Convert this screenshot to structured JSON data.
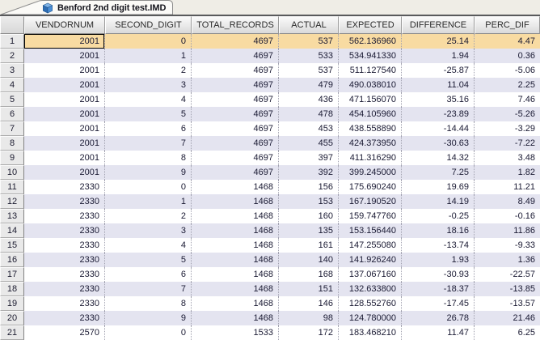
{
  "window": {
    "tab": {
      "title": "Benford 2nd digit test.IMD",
      "icon": "cube-database-icon"
    }
  },
  "grid": {
    "columns": [
      "VENDORNUM",
      "SECOND_DIGIT",
      "TOTAL_RECORDS",
      "ACTUAL",
      "EXPECTED",
      "DIFFERENCE",
      "PERC_DIF"
    ],
    "selected_row_number": "1",
    "focused_column": "VENDORNUM",
    "rows": [
      {
        "num": "1",
        "cells": [
          "2001",
          "0",
          "4697",
          "537",
          "562.136960",
          "25.14",
          "4.47"
        ],
        "selected": true,
        "focused_cell": 0
      },
      {
        "num": "2",
        "cells": [
          "2001",
          "1",
          "4697",
          "533",
          "534.941330",
          "1.94",
          "0.36"
        ]
      },
      {
        "num": "3",
        "cells": [
          "2001",
          "2",
          "4697",
          "537",
          "511.127540",
          "-25.87",
          "-5.06"
        ]
      },
      {
        "num": "4",
        "cells": [
          "2001",
          "3",
          "4697",
          "479",
          "490.038010",
          "11.04",
          "2.25"
        ]
      },
      {
        "num": "5",
        "cells": [
          "2001",
          "4",
          "4697",
          "436",
          "471.156070",
          "35.16",
          "7.46"
        ]
      },
      {
        "num": "6",
        "cells": [
          "2001",
          "5",
          "4697",
          "478",
          "454.105960",
          "-23.89",
          "-5.26"
        ]
      },
      {
        "num": "7",
        "cells": [
          "2001",
          "6",
          "4697",
          "453",
          "438.558890",
          "-14.44",
          "-3.29"
        ]
      },
      {
        "num": "8",
        "cells": [
          "2001",
          "7",
          "4697",
          "455",
          "424.373950",
          "-30.63",
          "-7.22"
        ]
      },
      {
        "num": "9",
        "cells": [
          "2001",
          "8",
          "4697",
          "397",
          "411.316290",
          "14.32",
          "3.48"
        ]
      },
      {
        "num": "10",
        "cells": [
          "2001",
          "9",
          "4697",
          "392",
          "399.245000",
          "7.25",
          "1.82"
        ]
      },
      {
        "num": "11",
        "cells": [
          "2330",
          "0",
          "1468",
          "156",
          "175.690240",
          "19.69",
          "11.21"
        ]
      },
      {
        "num": "12",
        "cells": [
          "2330",
          "1",
          "1468",
          "153",
          "167.190520",
          "14.19",
          "8.49"
        ]
      },
      {
        "num": "13",
        "cells": [
          "2330",
          "2",
          "1468",
          "160",
          "159.747760",
          "-0.25",
          "-0.16"
        ]
      },
      {
        "num": "14",
        "cells": [
          "2330",
          "3",
          "1468",
          "135",
          "153.156440",
          "18.16",
          "11.86"
        ]
      },
      {
        "num": "15",
        "cells": [
          "2330",
          "4",
          "1468",
          "161",
          "147.255080",
          "-13.74",
          "-9.33"
        ]
      },
      {
        "num": "16",
        "cells": [
          "2330",
          "5",
          "1468",
          "140",
          "141.926240",
          "1.93",
          "1.36"
        ]
      },
      {
        "num": "17",
        "cells": [
          "2330",
          "6",
          "1468",
          "168",
          "137.067160",
          "-30.93",
          "-22.57"
        ]
      },
      {
        "num": "18",
        "cells": [
          "2330",
          "7",
          "1468",
          "151",
          "132.633800",
          "-18.37",
          "-13.85"
        ]
      },
      {
        "num": "19",
        "cells": [
          "2330",
          "8",
          "1468",
          "146",
          "128.552760",
          "-17.45",
          "-13.57"
        ]
      },
      {
        "num": "20",
        "cells": [
          "2330",
          "9",
          "1468",
          "98",
          "124.780000",
          "26.78",
          "21.46"
        ]
      },
      {
        "num": "21",
        "cells": [
          "2570",
          "0",
          "1533",
          "172",
          "183.468210",
          "11.47",
          "6.25"
        ],
        "partial": true
      }
    ]
  },
  "colors": {
    "selected_row_bg": "#F8DBA2",
    "alt_row_bg": "#E4E4F0",
    "row_bg": "#FFFFFF",
    "focus_outline": "#000000",
    "header_bg": "#E3E3E3",
    "data_text": "#1A1A33",
    "tab_strip_line": "#595A5C",
    "tab_icon_blue": "#3A79C4"
  }
}
